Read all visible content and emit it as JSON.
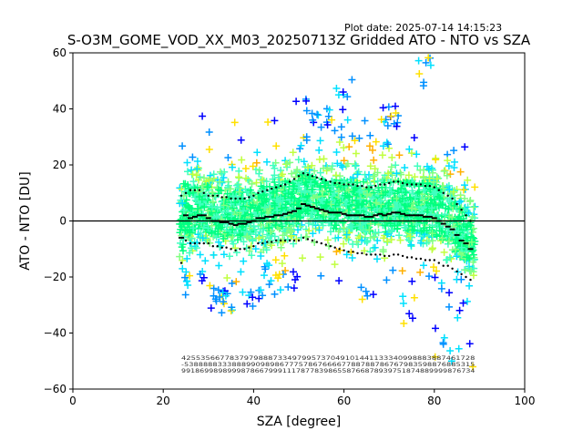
{
  "header": {
    "plot_date": "Plot date: 2025-07-14 14:15:23",
    "title": "S-O3M_GOME_VOD_XX_M03_20250713Z Gridded ATO - NTO vs SZA"
  },
  "chart_data": {
    "type": "scatter",
    "title": "S-O3M_GOME_VOD_XX_M03_20250713Z Gridded ATO - NTO vs SZA",
    "xlabel": "SZA [degree]",
    "ylabel": "ATO - NTO [DU]",
    "xlim": [
      0,
      100
    ],
    "ylim": [
      -60,
      60
    ],
    "xticks": [
      0,
      20,
      40,
      60,
      80,
      100
    ],
    "yticks": [
      -60,
      -40,
      -20,
      0,
      20,
      40,
      60
    ],
    "grid": false,
    "legend": "none",
    "reference_line_y": 0,
    "colors": {
      "axes": "#000000",
      "scatter_palette": [
        "#00ff80",
        "#40ffc0",
        "#00e0ff",
        "#80ff80",
        "#c0ff40",
        "#ffe000",
        "#ffb000",
        "#0090ff",
        "#0000ff"
      ],
      "stat_markers": "#000000"
    },
    "scatter_cloud": {
      "sza_range": [
        23.5,
        89
      ],
      "core_band_du": [
        -15,
        15
      ],
      "outer_envelope_du": [
        [
          24,
          30,
          -27
        ],
        [
          30,
          35,
          -33
        ],
        [
          35,
          40,
          -37
        ],
        [
          40,
          45,
          -30
        ],
        [
          45,
          50,
          -28
        ],
        [
          50,
          52,
          45
        ],
        [
          52,
          58,
          40
        ],
        [
          58,
          62,
          48
        ],
        [
          62,
          68,
          -30
        ],
        [
          68,
          72,
          38
        ],
        [
          72,
          76,
          -40
        ],
        [
          76,
          80,
          57
        ],
        [
          80,
          85,
          -55
        ],
        [
          85,
          89,
          -58
        ]
      ]
    },
    "series": [
      {
        "x": [
          24,
          25,
          26,
          27,
          28,
          29,
          30,
          31,
          32,
          33,
          34,
          35,
          36,
          37,
          38,
          39,
          40,
          41,
          42,
          43,
          44,
          45,
          46,
          47,
          48,
          49,
          50,
          51,
          52,
          53,
          54,
          55,
          56,
          57,
          58,
          59,
          60,
          61,
          62,
          63,
          64,
          65,
          66,
          67,
          68,
          69,
          70,
          71,
          72,
          73,
          74,
          75,
          76,
          77,
          78,
          79,
          80,
          81,
          82,
          83,
          84,
          85,
          86,
          87,
          88
        ],
        "y": [
          -6,
          2,
          1,
          1.5,
          2,
          2,
          1,
          0,
          0,
          -0.5,
          -0.5,
          -1,
          -1.5,
          -1,
          -1,
          -0.5,
          0,
          1,
          1,
          1.5,
          1.5,
          2,
          2,
          2.5,
          3,
          3.5,
          4.5,
          6,
          5.5,
          5,
          4.5,
          4,
          3.5,
          3,
          3,
          3,
          2.5,
          2,
          2,
          2,
          2,
          1.5,
          1.5,
          2,
          2.5,
          2,
          2.5,
          3,
          3,
          2.5,
          2,
          2,
          2,
          2,
          1.5,
          1.5,
          1,
          0,
          -1,
          -2,
          -3,
          -5,
          -7,
          -8,
          -10
        ]
      },
      {
        "x": [
          24,
          25,
          26,
          27,
          28,
          29,
          30,
          31,
          32,
          33,
          34,
          35,
          36,
          37,
          38,
          39,
          40,
          41,
          42,
          43,
          44,
          45,
          46,
          47,
          48,
          49,
          50,
          51,
          52,
          53,
          54,
          55,
          56,
          57,
          58,
          59,
          60,
          61,
          62,
          63,
          64,
          65,
          66,
          67,
          68,
          69,
          70,
          71,
          72,
          73,
          74,
          75,
          76,
          77,
          78,
          79,
          80,
          81,
          82,
          83,
          84,
          85,
          86,
          87,
          88
        ],
        "y": [
          9,
          10,
          11,
          11,
          11,
          10,
          9,
          9,
          9,
          8.5,
          8.5,
          8,
          8,
          8,
          8,
          8.5,
          9,
          10,
          10.5,
          11,
          11.5,
          12,
          12.5,
          13,
          14,
          15,
          16,
          17,
          16.5,
          16,
          15.5,
          15,
          14.5,
          14,
          13.5,
          13.5,
          13,
          13,
          13,
          12.5,
          12.5,
          12,
          12,
          12.5,
          13,
          13,
          13.5,
          14,
          14,
          13.5,
          13,
          13,
          13,
          13,
          12.5,
          12.5,
          12,
          11,
          10,
          9,
          8,
          6,
          4,
          2,
          0
        ]
      },
      {
        "x": [
          24,
          25,
          26,
          27,
          28,
          29,
          30,
          31,
          32,
          33,
          34,
          35,
          36,
          37,
          38,
          39,
          40,
          41,
          42,
          43,
          44,
          45,
          46,
          47,
          48,
          49,
          50,
          51,
          52,
          53,
          54,
          55,
          56,
          57,
          58,
          59,
          60,
          61,
          62,
          63,
          64,
          65,
          66,
          67,
          68,
          69,
          70,
          71,
          72,
          73,
          74,
          75,
          76,
          77,
          78,
          79,
          80,
          81,
          82,
          83,
          84,
          85,
          86,
          87,
          88
        ],
        "y": [
          -15,
          -7,
          -8,
          -8,
          -8,
          -8,
          -8,
          -9,
          -9,
          -9.5,
          -9.5,
          -10,
          -10.5,
          -10,
          -10,
          -9.5,
          -9,
          -8,
          -8,
          -7.5,
          -7.5,
          -7,
          -7,
          -7,
          -7,
          -7,
          -7,
          -6,
          -6.5,
          -7,
          -7.5,
          -8,
          -8.5,
          -9,
          -9.5,
          -10,
          -10.5,
          -11,
          -11,
          -11.5,
          -11.5,
          -12,
          -12,
          -12,
          -12,
          -12.5,
          -12.5,
          -12,
          -12,
          -12.5,
          -13,
          -13,
          -13.5,
          -13.5,
          -14,
          -14,
          -14,
          -15,
          -16,
          -16,
          -17,
          -18,
          -19,
          -20,
          -21
        ]
      }
    ],
    "annotations": {
      "count_rows": [
        "4255356677837979888733497995737049101441133340998883887461728",
        "-5388888333888990989867775786766667788788786767983598876885315",
        "9918699898999878667999111787783986558766878939751874889999876734"
      ]
    }
  }
}
